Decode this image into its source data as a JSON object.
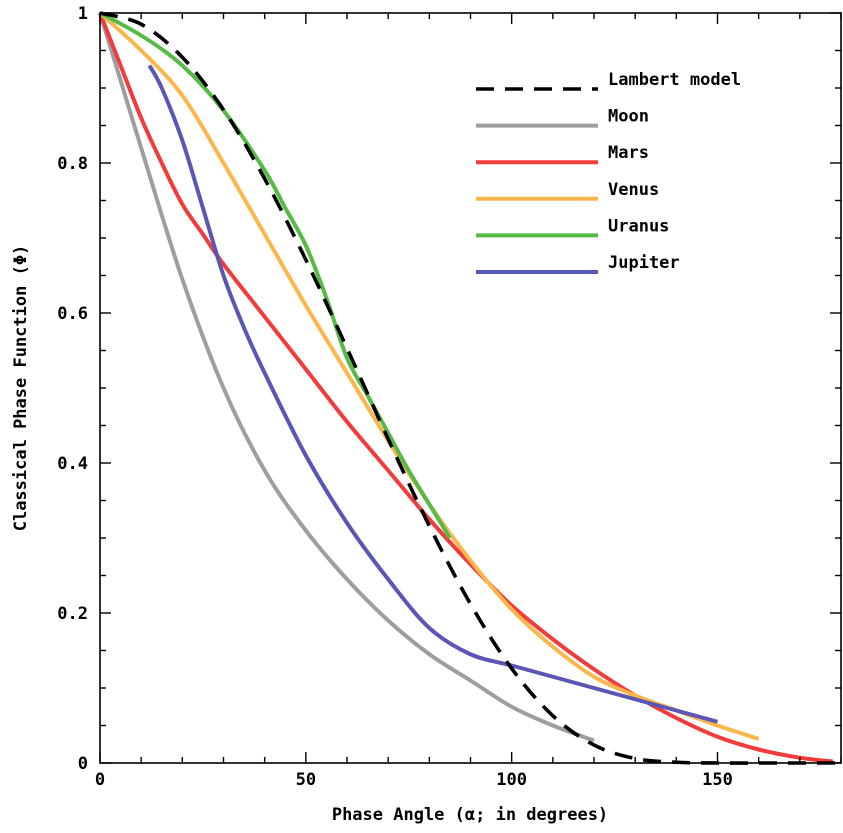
{
  "chart_data": {
    "type": "line",
    "title": "",
    "xlabel": "Phase Angle (α; in degrees)",
    "ylabel": "Classical Phase Function (Φ)",
    "xlim": [
      0,
      180
    ],
    "ylim": [
      0,
      1
    ],
    "x_ticks": [
      0,
      50,
      100,
      150
    ],
    "x_tick_labels": [
      "0",
      "50",
      "100",
      "150"
    ],
    "y_ticks": [
      0,
      0.2,
      0.4,
      0.6,
      0.8,
      1
    ],
    "y_tick_labels": [
      "0",
      "0.2",
      "0.4",
      "0.6",
      "0.8",
      "1"
    ],
    "grid": false,
    "legend_position": "top-right",
    "series": [
      {
        "name": "Lambert model",
        "color": "#000000",
        "dash": true,
        "x": [
          0,
          10,
          20,
          30,
          40,
          50,
          60,
          70,
          80,
          90,
          100,
          110,
          120,
          130,
          140,
          150,
          160,
          170,
          180
        ],
        "y": [
          1.0,
          0.985,
          0.941,
          0.871,
          0.779,
          0.671,
          0.553,
          0.432,
          0.316,
          0.212,
          0.126,
          0.063,
          0.024,
          0.006,
          0.001,
          0.0,
          0.0,
          0.0,
          0.0
        ]
      },
      {
        "name": "Moon",
        "color": "#9e9e9e",
        "dash": false,
        "x": [
          0,
          5,
          10,
          20,
          30,
          40,
          50,
          60,
          70,
          80,
          90,
          100,
          110,
          120
        ],
        "y": [
          1.0,
          0.91,
          0.82,
          0.645,
          0.5,
          0.39,
          0.31,
          0.245,
          0.19,
          0.145,
          0.11,
          0.075,
          0.05,
          0.03
        ]
      },
      {
        "name": "Mars",
        "color": "#f23b3b",
        "dash": false,
        "x": [
          0,
          5,
          10,
          15,
          20,
          25,
          30,
          40,
          50,
          60,
          70,
          80,
          90,
          100,
          110,
          120,
          130,
          140,
          150,
          160,
          170,
          178
        ],
        "y": [
          1.0,
          0.93,
          0.86,
          0.8,
          0.745,
          0.705,
          0.665,
          0.595,
          0.525,
          0.455,
          0.39,
          0.325,
          0.265,
          0.21,
          0.165,
          0.125,
          0.09,
          0.06,
          0.035,
          0.018,
          0.007,
          0.002
        ]
      },
      {
        "name": "Venus",
        "color": "#fdb64b",
        "dash": false,
        "x": [
          0,
          10,
          20,
          30,
          40,
          50,
          60,
          70,
          80,
          90,
          100,
          110,
          120,
          130,
          140,
          150,
          160
        ],
        "y": [
          1.0,
          0.95,
          0.89,
          0.8,
          0.705,
          0.61,
          0.52,
          0.43,
          0.345,
          0.27,
          0.205,
          0.155,
          0.115,
          0.09,
          0.07,
          0.05,
          0.032
        ]
      },
      {
        "name": "Uranus",
        "color": "#55bb44",
        "dash": false,
        "x": [
          0,
          10,
          20,
          30,
          40,
          45,
          50,
          55,
          60,
          65,
          70,
          75,
          80,
          85
        ],
        "y": [
          1.0,
          0.97,
          0.93,
          0.87,
          0.79,
          0.74,
          0.69,
          0.62,
          0.54,
          0.49,
          0.44,
          0.39,
          0.345,
          0.3
        ]
      },
      {
        "name": "Jupiter",
        "color": "#5a56b5",
        "dash": false,
        "x": [
          12,
          15,
          20,
          25,
          30,
          35,
          40,
          50,
          60,
          70,
          80,
          90,
          100,
          110,
          120,
          130,
          140,
          150
        ],
        "y": [
          0.93,
          0.9,
          0.83,
          0.74,
          0.65,
          0.58,
          0.52,
          0.41,
          0.32,
          0.245,
          0.18,
          0.145,
          0.13,
          0.115,
          0.1,
          0.085,
          0.07,
          0.055
        ]
      }
    ]
  }
}
